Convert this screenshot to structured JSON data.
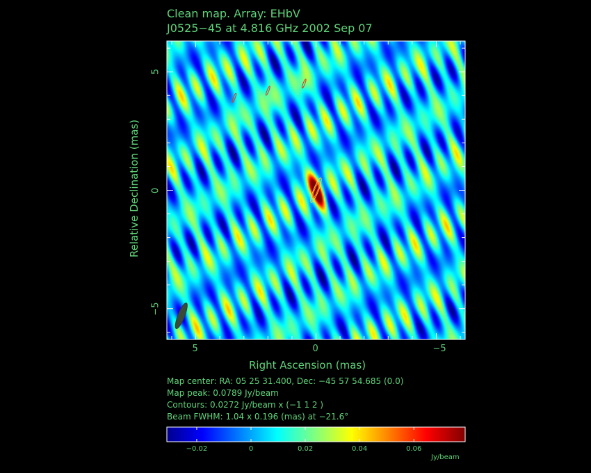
{
  "title_line1": "Clean map.  Array: EHbV",
  "title_line2": "J0525−45 at 4.816 GHz 2002 Sep 07",
  "info": {
    "map_center": "Map center:  RA: 05 25 31.400,  Dec: −45 57 54.685 (0.0)",
    "map_peak": "Map peak: 0.0789 Jy/beam",
    "contours": "Contours: 0.0272 Jy/beam x (−1 1 2 )",
    "beam": "Beam FWHM: 1.04 x 0.196 (mas) at −21.6°"
  },
  "colors": {
    "text": "#5fd47a",
    "background": "#000000",
    "frame": "#ffffff",
    "beam_ellipse": "#3a4a3a"
  },
  "chart_data": {
    "type": "heatmap",
    "title": "Clean map.  Array: EHbV",
    "subtitle": "J0525−45 at 4.816 GHz 2002 Sep 07",
    "xlabel": "Right Ascension   (mas)",
    "ylabel": "Relative Declination   (mas)",
    "xlim": [
      6.2,
      -6.2
    ],
    "ylim": [
      -6.3,
      6.3
    ],
    "x_ticks": [
      5,
      0,
      -5
    ],
    "x_tick_labels": [
      "5",
      "0",
      "−5"
    ],
    "y_ticks": [
      5,
      0,
      -5
    ],
    "y_tick_labels": [
      "5",
      "0",
      "−5"
    ],
    "colormap": "jet",
    "colorbar": {
      "range": [
        -0.031,
        0.0789
      ],
      "ticks": [
        -0.02,
        0,
        0.02,
        0.04,
        0.06
      ],
      "tick_labels": [
        "−0.02",
        "0",
        "0.02",
        "0.04",
        "0.06"
      ],
      "unit": "Jy/beam"
    },
    "peak": {
      "x": 0,
      "y": 0,
      "value": 0.0789
    },
    "secondary_features": [
      {
        "x": 3.4,
        "y": 3.9,
        "value": 0.03
      },
      {
        "x": 2.0,
        "y": 4.2,
        "value": 0.03
      },
      {
        "x": 0.5,
        "y": 4.5,
        "value": 0.03
      }
    ],
    "contour_levels": [
      -0.0272,
      0.0272,
      0.0544
    ],
    "beam": {
      "major_mas": 1.04,
      "minor_mas": 0.196,
      "pa_deg": -21.6,
      "position": "bottom-left"
    }
  }
}
